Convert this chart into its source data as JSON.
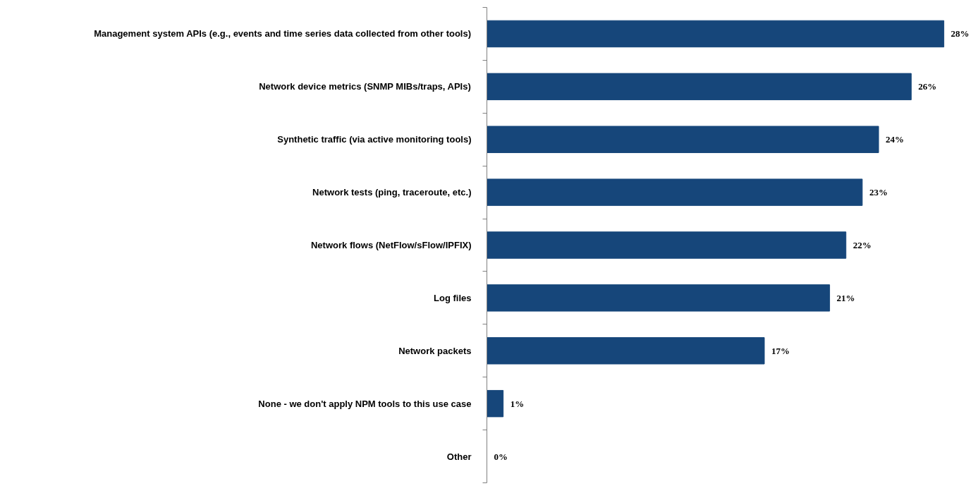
{
  "chart_data": {
    "type": "bar",
    "orientation": "horizontal",
    "categories": [
      "Management system APIs (e.g., events and time series data collected from other tools)",
      "Network device metrics (SNMP MIBs/traps, APIs)",
      "Synthetic traffic (via active monitoring tools)",
      "Network tests (ping, traceroute, etc.)",
      "Network flows (NetFlow/sFlow/IPFIX)",
      "Log files",
      "Network packets",
      "None - we don't apply NPM tools to this use case",
      "Other"
    ],
    "values": [
      28,
      26,
      24,
      23,
      22,
      21,
      17,
      1,
      0
    ],
    "value_labels": [
      "28%",
      "26%",
      "24%",
      "23%",
      "22%",
      "21%",
      "17%",
      "1%",
      "0%"
    ],
    "color": "#16467a"
  }
}
